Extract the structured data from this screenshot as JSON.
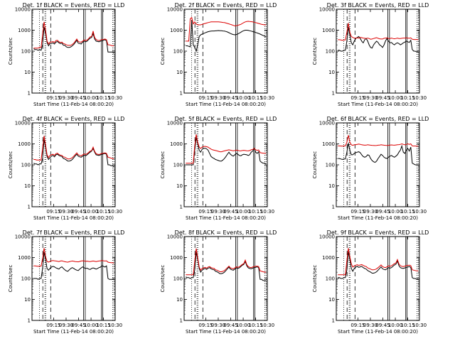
{
  "chart_data": [
    {
      "type": "line",
      "title": "Det. 1f BLACK = Events, RED = LLD",
      "series": [
        {
          "color": "#000000",
          "values": [
            130,
            120,
            120,
            110,
            120,
            110,
            200,
            1400,
            700,
            260,
            180,
            230,
            230,
            250,
            220,
            270,
            290,
            250,
            230,
            240,
            190,
            190,
            160,
            150,
            150,
            160,
            180,
            210,
            260,
            330,
            240,
            230,
            220,
            270,
            300,
            280,
            300,
            360,
            420,
            450,
            700,
            380,
            300,
            290,
            280,
            300,
            310,
            330,
            350,
            310,
            90,
            90,
            90,
            90,
            80
          ]
        },
        {
          "color": "#dd0000",
          "values": [
            140,
            140,
            140,
            140,
            150,
            150,
            600,
            2500,
            1000,
            300,
            220,
            270,
            270,
            290,
            260,
            320,
            330,
            280,
            260,
            270,
            230,
            220,
            200,
            190,
            190,
            190,
            210,
            240,
            300,
            380,
            290,
            270,
            270,
            300,
            340,
            320,
            340,
            400,
            480,
            500,
            900,
            450,
            360,
            330,
            320,
            340,
            360,
            360,
            380,
            350,
            200,
            200,
            190,
            180,
            180
          ]
        }
      ]
    },
    {
      "type": "line",
      "title": "Det. 2f BLACK = Events, RED = LLD",
      "series": [
        {
          "color": "#000000",
          "values": [
            180,
            180,
            170,
            160,
            3000,
            200,
            150,
            100,
            200,
            500,
            600,
            650,
            700,
            750,
            800,
            850,
            880,
            900,
            920,
            920,
            930,
            950,
            960,
            950,
            940,
            920,
            900,
            870,
            820,
            760,
            700,
            650,
            620,
            600,
            620,
            660,
            720,
            800,
            880,
            950,
            1000,
            1000,
            980,
            940,
            900,
            860,
            820,
            780,
            740,
            700,
            650,
            600,
            560,
            520,
            480
          ]
        },
        {
          "color": "#dd0000",
          "values": [
            300,
            300,
            300,
            3500,
            4000,
            2000,
            2500,
            2000,
            1800,
            1800,
            1800,
            1900,
            2000,
            2100,
            2200,
            2300,
            2400,
            2500,
            2500,
            2500,
            2500,
            2500,
            2500,
            2450,
            2400,
            2350,
            2300,
            2200,
            2100,
            2000,
            1900,
            1800,
            1700,
            1600,
            1650,
            1700,
            1800,
            1900,
            2100,
            2300,
            2500,
            2600,
            2650,
            2600,
            2550,
            2500,
            2400,
            2300,
            2200,
            2100,
            2000,
            1900,
            1850,
            1800,
            1800
          ]
        }
      ]
    },
    {
      "type": "line",
      "title": "Det. 3f BLACK = Events, RED = LLD",
      "series": [
        {
          "color": "#000000",
          "values": [
            110,
            110,
            100,
            100,
            110,
            110,
            300,
            1400,
            600,
            250,
            200,
            300,
            400,
            450,
            500,
            400,
            300,
            250,
            350,
            400,
            300,
            200,
            150,
            140,
            200,
            250,
            300,
            260,
            200,
            180,
            150,
            200,
            300,
            400,
            300,
            250,
            260,
            220,
            200,
            230,
            250,
            230,
            200,
            220,
            250,
            270,
            300,
            280,
            260,
            330,
            120,
            100,
            100,
            90,
            90
          ]
        },
        {
          "color": "#dd0000",
          "values": [
            350,
            350,
            340,
            330,
            340,
            340,
            800,
            2200,
            800,
            500,
            450,
            420,
            420,
            430,
            420,
            450,
            440,
            420,
            410,
            400,
            420,
            400,
            370,
            380,
            400,
            420,
            440,
            410,
            390,
            380,
            380,
            410,
            420,
            430,
            400,
            400,
            420,
            400,
            390,
            400,
            420,
            400,
            400,
            410,
            420,
            420,
            430,
            420,
            410,
            430,
            370,
            360,
            360,
            360,
            350
          ]
        }
      ]
    },
    {
      "type": "line",
      "title": "Det. 4f BLACK = Events, RED = LLD",
      "series": [
        {
          "color": "#000000",
          "values": [
            120,
            110,
            110,
            100,
            110,
            110,
            200,
            1600,
            700,
            250,
            180,
            220,
            260,
            280,
            240,
            300,
            320,
            280,
            260,
            250,
            200,
            190,
            170,
            150,
            150,
            160,
            180,
            220,
            270,
            320,
            260,
            240,
            230,
            260,
            290,
            270,
            300,
            350,
            400,
            450,
            600,
            400,
            300,
            290,
            280,
            300,
            320,
            330,
            350,
            320,
            100,
            100,
            90,
            90,
            80
          ]
        },
        {
          "color": "#dd0000",
          "values": [
            180,
            180,
            170,
            170,
            170,
            170,
            600,
            2400,
            900,
            300,
            220,
            280,
            300,
            320,
            280,
            340,
            360,
            310,
            290,
            280,
            240,
            230,
            210,
            190,
            190,
            200,
            220,
            260,
            310,
            370,
            300,
            280,
            270,
            300,
            330,
            310,
            340,
            390,
            450,
            480,
            700,
            440,
            340,
            320,
            310,
            330,
            350,
            360,
            370,
            350,
            230,
            220,
            210,
            200,
            190
          ]
        }
      ]
    },
    {
      "type": "line",
      "title": "Det. 5f BLACK = Events, RED = LLD",
      "series": [
        {
          "color": "#000000",
          "values": [
            100,
            100,
            100,
            100,
            100,
            100,
            500,
            2000,
            1000,
            500,
            400,
            550,
            600,
            620,
            580,
            500,
            350,
            250,
            220,
            200,
            180,
            170,
            160,
            150,
            150,
            170,
            200,
            250,
            320,
            400,
            320,
            280,
            260,
            300,
            350,
            320,
            280,
            270,
            300,
            320,
            310,
            300,
            280,
            300,
            400,
            450,
            600,
            400,
            350,
            420,
            150,
            130,
            120,
            120,
            110
          ]
        },
        {
          "color": "#dd0000",
          "values": [
            120,
            120,
            120,
            120,
            120,
            120,
            800,
            2800,
            1200,
            700,
            600,
            700,
            750,
            760,
            730,
            700,
            620,
            560,
            520,
            500,
            480,
            460,
            440,
            420,
            420,
            440,
            460,
            480,
            500,
            520,
            500,
            480,
            470,
            480,
            500,
            490,
            470,
            460,
            480,
            490,
            480,
            470,
            460,
            480,
            520,
            540,
            600,
            520,
            490,
            510,
            380,
            370,
            360,
            360,
            350
          ]
        }
      ]
    },
    {
      "type": "line",
      "title": "Det. 6f BLACK = Events, RED = LLD",
      "series": [
        {
          "color": "#000000",
          "values": [
            200,
            200,
            190,
            180,
            190,
            190,
            400,
            1100,
            500,
            300,
            300,
            350,
            380,
            400,
            420,
            380,
            300,
            250,
            230,
            250,
            300,
            280,
            200,
            160,
            140,
            130,
            150,
            200,
            250,
            320,
            280,
            230,
            210,
            200,
            230,
            260,
            280,
            250,
            230,
            260,
            300,
            400,
            500,
            800,
            400,
            350,
            500,
            600,
            450,
            700,
            120,
            110,
            100,
            100,
            100
          ]
        },
        {
          "color": "#dd0000",
          "values": [
            800,
            800,
            790,
            780,
            800,
            800,
            1200,
            2600,
            1200,
            900,
            850,
            900,
            920,
            950,
            980,
            950,
            900,
            880,
            860,
            870,
            900,
            880,
            860,
            850,
            840,
            830,
            840,
            860,
            870,
            900,
            880,
            860,
            850,
            840,
            850,
            870,
            890,
            870,
            860,
            880,
            900,
            920,
            950,
            1000,
            950,
            900,
            950,
            1000,
            950,
            1000,
            800,
            790,
            790,
            780,
            780
          ]
        }
      ]
    },
    {
      "type": "line",
      "title": "Det. 7f BLACK = Events, RED = LLD",
      "series": [
        {
          "color": "#000000",
          "values": [
            100,
            100,
            100,
            90,
            100,
            100,
            300,
            1800,
            800,
            300,
            250,
            300,
            350,
            380,
            360,
            320,
            300,
            280,
            330,
            360,
            300,
            260,
            230,
            220,
            260,
            300,
            330,
            300,
            270,
            250,
            240,
            280,
            320,
            360,
            320,
            300,
            310,
            280,
            270,
            300,
            320,
            300,
            280,
            300,
            330,
            350,
            400,
            380,
            350,
            400,
            100,
            90,
            90,
            90,
            90
          ]
        },
        {
          "color": "#dd0000",
          "values": [
            400,
            400,
            390,
            380,
            390,
            390,
            900,
            2800,
            1100,
            650,
            600,
            650,
            700,
            720,
            700,
            680,
            660,
            640,
            680,
            700,
            660,
            630,
            610,
            600,
            630,
            660,
            680,
            660,
            640,
            630,
            620,
            650,
            680,
            700,
            680,
            660,
            670,
            650,
            640,
            660,
            680,
            660,
            640,
            660,
            680,
            700,
            720,
            700,
            680,
            700,
            600,
            580,
            570,
            560,
            550
          ]
        }
      ]
    },
    {
      "type": "line",
      "title": "Det. 8f BLACK = Events, RED = LLD",
      "series": [
        {
          "color": "#000000",
          "values": [
            120,
            110,
            110,
            100,
            110,
            110,
            250,
            1800,
            800,
            300,
            200,
            250,
            280,
            300,
            270,
            310,
            330,
            290,
            270,
            260,
            220,
            210,
            190,
            170,
            170,
            180,
            200,
            240,
            290,
            350,
            280,
            260,
            250,
            280,
            320,
            300,
            320,
            370,
            430,
            470,
            650,
            400,
            320,
            300,
            290,
            310,
            330,
            340,
            360,
            330,
            90,
            90,
            80,
            80,
            80
          ]
        },
        {
          "color": "#dd0000",
          "values": [
            150,
            150,
            150,
            150,
            150,
            150,
            650,
            2700,
            1000,
            350,
            250,
            300,
            320,
            340,
            310,
            350,
            370,
            330,
            310,
            300,
            260,
            250,
            230,
            210,
            210,
            220,
            240,
            280,
            330,
            390,
            320,
            300,
            290,
            320,
            360,
            340,
            360,
            410,
            470,
            510,
            750,
            460,
            370,
            340,
            330,
            350,
            370,
            380,
            390,
            370,
            230,
            220,
            210,
            200,
            200
          ]
        }
      ]
    },
    {
      "type": "line",
      "title": "Det. 9f BLACK = Events, RED = LLD",
      "series": [
        {
          "color": "#000000",
          "values": [
            110,
            110,
            100,
            100,
            110,
            110,
            250,
            1900,
            800,
            300,
            220,
            300,
            350,
            380,
            340,
            360,
            380,
            330,
            300,
            280,
            240,
            220,
            200,
            180,
            180,
            190,
            210,
            250,
            300,
            360,
            290,
            270,
            260,
            290,
            330,
            310,
            330,
            380,
            440,
            480,
            680,
            410,
            330,
            310,
            300,
            320,
            340,
            350,
            370,
            340,
            110,
            100,
            100,
            90,
            90
          ]
        },
        {
          "color": "#dd0000",
          "values": [
            150,
            150,
            150,
            150,
            150,
            150,
            700,
            2800,
            1100,
            500,
            350,
            400,
            430,
            450,
            420,
            440,
            460,
            420,
            390,
            370,
            320,
            300,
            280,
            260,
            260,
            270,
            290,
            330,
            380,
            440,
            370,
            340,
            330,
            360,
            400,
            380,
            400,
            450,
            510,
            550,
            800,
            500,
            410,
            380,
            370,
            390,
            410,
            420,
            430,
            410,
            260,
            250,
            240,
            230,
            230
          ]
        }
      ]
    }
  ],
  "axes": {
    "ylabel": "Counts/sec",
    "xlabel": "Start Time (11-Feb-14 08:00:20)",
    "xticks": [
      "09:15",
      "09:30",
      "09:45",
      "10:00",
      "10:15",
      "10:30"
    ],
    "yticks": [
      "1",
      "10",
      "100",
      "1000",
      "10000"
    ],
    "ylim": [
      1,
      10000
    ],
    "yscale": "log"
  },
  "colors": {
    "events": "#000000",
    "lld": "#dd0000"
  }
}
